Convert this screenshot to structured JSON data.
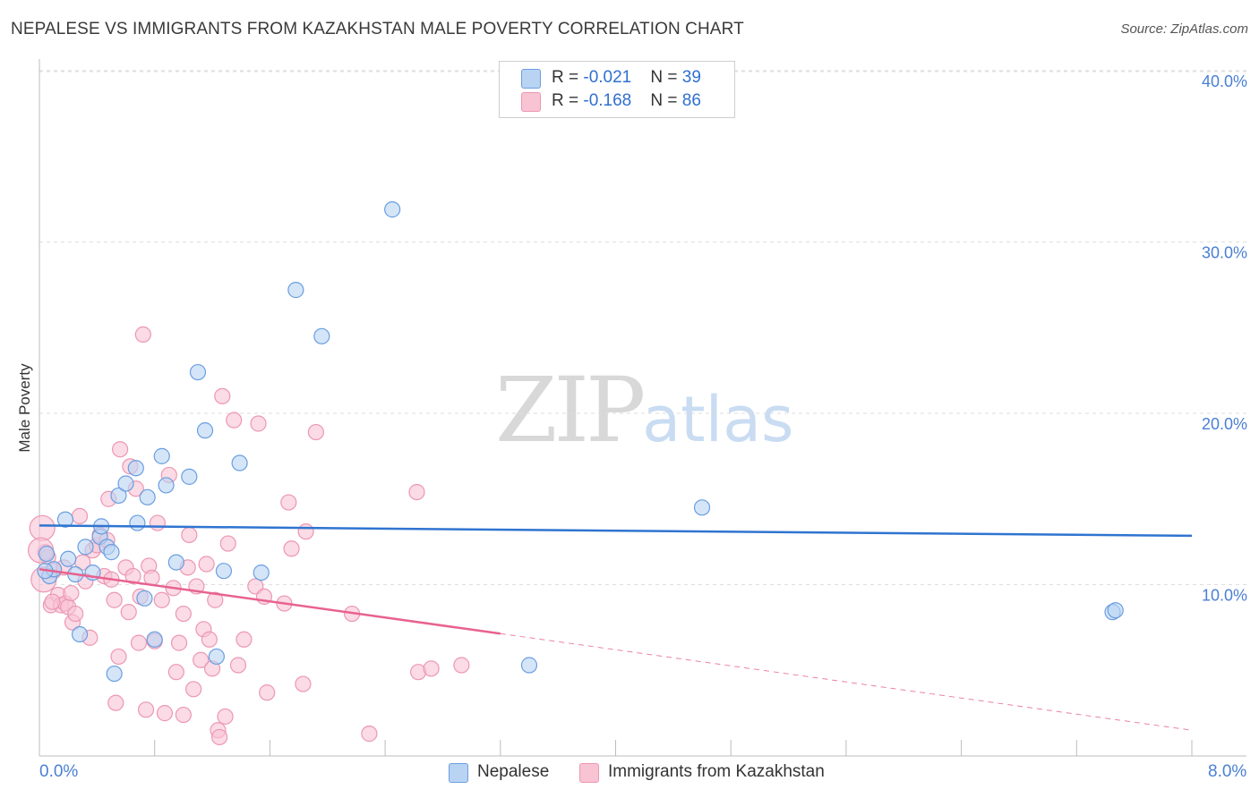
{
  "title": "NEPALESE VS IMMIGRANTS FROM KAZAKHSTAN MALE POVERTY CORRELATION CHART",
  "source": "Source: ZipAtlas.com",
  "watermark": {
    "zip": "ZIP",
    "atlas": "atlas"
  },
  "legend_top": [
    {
      "r_label": "R = ",
      "r_value": "-0.021",
      "n_label": "N = ",
      "n_value": "39"
    },
    {
      "r_label": "R = ",
      "r_value": "-0.168",
      "n_label": "N = ",
      "n_value": "86"
    }
  ],
  "x_axis": {
    "min_label": "0.0%",
    "max_label": "8.0%"
  },
  "colors": {
    "nepalese_fill": "#b9d3f3",
    "nepalese_stroke": "#6a9ee0",
    "nepalese_line": "#2f74d0",
    "kaz_fill": "#f8c3d3",
    "kaz_stroke": "#ec97b3",
    "kaz_line": "#e8628f",
    "grid": "#dedede",
    "axis_text": "#4a7fd4"
  },
  "chart_data": {
    "type": "scatter",
    "title": "NEPALESE VS IMMIGRANTS FROM KAZAKHSTAN MALE POVERTY CORRELATION CHART",
    "xlabel": "",
    "ylabel": "Male Poverty",
    "xlim": [
      0,
      8
    ],
    "ylim": [
      0,
      40
    ],
    "y_ticks": [
      10,
      20,
      30,
      40
    ],
    "y_tick_labels": [
      "10.0%",
      "20.0%",
      "30.0%",
      "40.0%"
    ],
    "legend_position": "bottom",
    "series": [
      {
        "name": "Nepalese",
        "r": -0.021,
        "n": 39,
        "trend": {
          "x0": 0,
          "y0": 13.45,
          "x1": 8,
          "y1": 12.85,
          "solid_until": 8
        },
        "points": [
          [
            0.05,
            11.8
          ],
          [
            0.07,
            10.5
          ],
          [
            0.1,
            10.9
          ],
          [
            0.18,
            13.8
          ],
          [
            0.2,
            11.5
          ],
          [
            0.25,
            10.6
          ],
          [
            0.28,
            7.1
          ],
          [
            0.32,
            12.2
          ],
          [
            0.37,
            10.7
          ],
          [
            0.42,
            12.8
          ],
          [
            0.43,
            13.4
          ],
          [
            0.47,
            12.2
          ],
          [
            0.5,
            11.9
          ],
          [
            0.52,
            4.8
          ],
          [
            0.55,
            15.2
          ],
          [
            0.6,
            15.9
          ],
          [
            0.67,
            16.8
          ],
          [
            0.68,
            13.6
          ],
          [
            0.73,
            9.2
          ],
          [
            0.75,
            15.1
          ],
          [
            0.8,
            6.8
          ],
          [
            0.85,
            17.5
          ],
          [
            0.88,
            15.8
          ],
          [
            0.95,
            11.3
          ],
          [
            1.04,
            16.3
          ],
          [
            1.1,
            22.4
          ],
          [
            1.15,
            19.0
          ],
          [
            1.23,
            5.8
          ],
          [
            1.28,
            10.8
          ],
          [
            1.39,
            17.1
          ],
          [
            1.54,
            10.7
          ],
          [
            1.78,
            27.2
          ],
          [
            1.96,
            24.5
          ],
          [
            2.45,
            31.9
          ],
          [
            3.4,
            5.3
          ],
          [
            4.6,
            14.5
          ],
          [
            7.45,
            8.4
          ],
          [
            7.47,
            8.5
          ],
          [
            0.04,
            10.8
          ]
        ]
      },
      {
        "name": "Immigrants from Kazakhstan",
        "r": -0.168,
        "n": 86,
        "trend": {
          "x0": 0,
          "y0": 10.9,
          "x1": 8,
          "y1": 1.5,
          "solid_until": 3.2
        },
        "points": [
          [
            0.02,
            13.3
          ],
          [
            0.04,
            11.9
          ],
          [
            0.06,
            11.6
          ],
          [
            0.08,
            8.8
          ],
          [
            0.1,
            10.8
          ],
          [
            0.13,
            9.4
          ],
          [
            0.15,
            8.8
          ],
          [
            0.17,
            11.0
          ],
          [
            0.18,
            8.9
          ],
          [
            0.2,
            8.7
          ],
          [
            0.22,
            9.5
          ],
          [
            0.23,
            7.8
          ],
          [
            0.25,
            8.3
          ],
          [
            0.28,
            14.0
          ],
          [
            0.3,
            11.3
          ],
          [
            0.32,
            10.2
          ],
          [
            0.35,
            6.9
          ],
          [
            0.37,
            12.0
          ],
          [
            0.4,
            12.3
          ],
          [
            0.42,
            12.9
          ],
          [
            0.45,
            10.5
          ],
          [
            0.47,
            12.6
          ],
          [
            0.48,
            15.0
          ],
          [
            0.5,
            10.3
          ],
          [
            0.52,
            9.1
          ],
          [
            0.53,
            3.1
          ],
          [
            0.55,
            5.8
          ],
          [
            0.56,
            17.9
          ],
          [
            0.6,
            11.0
          ],
          [
            0.62,
            8.4
          ],
          [
            0.63,
            16.9
          ],
          [
            0.65,
            10.5
          ],
          [
            0.67,
            15.6
          ],
          [
            0.69,
            6.6
          ],
          [
            0.7,
            9.3
          ],
          [
            0.72,
            24.6
          ],
          [
            0.74,
            2.7
          ],
          [
            0.76,
            11.1
          ],
          [
            0.78,
            10.4
          ],
          [
            0.8,
            6.7
          ],
          [
            0.82,
            13.6
          ],
          [
            0.85,
            9.1
          ],
          [
            0.87,
            2.5
          ],
          [
            0.9,
            16.4
          ],
          [
            0.93,
            9.8
          ],
          [
            0.95,
            4.9
          ],
          [
            0.97,
            6.6
          ],
          [
            1.0,
            8.3
          ],
          [
            1.0,
            2.4
          ],
          [
            1.03,
            11.0
          ],
          [
            1.04,
            12.9
          ],
          [
            1.07,
            3.9
          ],
          [
            1.09,
            9.9
          ],
          [
            1.12,
            5.6
          ],
          [
            1.14,
            7.4
          ],
          [
            1.16,
            11.2
          ],
          [
            1.18,
            6.8
          ],
          [
            1.2,
            5.1
          ],
          [
            1.22,
            9.1
          ],
          [
            1.24,
            1.5
          ],
          [
            1.25,
            1.1
          ],
          [
            1.27,
            21.0
          ],
          [
            1.29,
            2.3
          ],
          [
            1.31,
            12.4
          ],
          [
            1.35,
            19.6
          ],
          [
            1.38,
            5.3
          ],
          [
            1.42,
            6.8
          ],
          [
            1.5,
            9.9
          ],
          [
            1.52,
            19.4
          ],
          [
            1.56,
            9.3
          ],
          [
            1.58,
            3.7
          ],
          [
            1.7,
            8.9
          ],
          [
            1.73,
            14.8
          ],
          [
            1.75,
            12.1
          ],
          [
            1.83,
            4.2
          ],
          [
            1.85,
            13.1
          ],
          [
            1.92,
            18.9
          ],
          [
            2.17,
            8.3
          ],
          [
            2.29,
            1.3
          ],
          [
            2.62,
            15.4
          ],
          [
            2.63,
            4.9
          ],
          [
            2.72,
            5.1
          ],
          [
            2.93,
            5.3
          ],
          [
            0.01,
            12.0
          ],
          [
            0.03,
            10.3
          ],
          [
            0.09,
            9.0
          ]
        ]
      }
    ]
  }
}
